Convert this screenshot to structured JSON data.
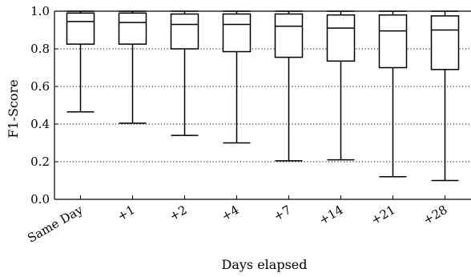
{
  "chart_data": {
    "type": "boxplot",
    "xlabel": "Days elapsed",
    "ylabel": "F1-Score",
    "ylim": [
      0.0,
      1.0
    ],
    "yticks": [
      "0.0",
      "0.2",
      "0.4",
      "0.6",
      "0.8",
      "1.0"
    ],
    "grid": "horizontal dotted",
    "categories": [
      "Same Day",
      "+1",
      "+2",
      "+4",
      "+7",
      "+14",
      "+21",
      "+28"
    ],
    "boxes": [
      {
        "whisker_low": 0.465,
        "q1": 0.825,
        "median": 0.945,
        "q3": 0.99,
        "whisker_high": 1.0
      },
      {
        "whisker_low": 0.405,
        "q1": 0.825,
        "median": 0.94,
        "q3": 0.99,
        "whisker_high": 1.0
      },
      {
        "whisker_low": 0.34,
        "q1": 0.8,
        "median": 0.93,
        "q3": 0.985,
        "whisker_high": 1.0
      },
      {
        "whisker_low": 0.3,
        "q1": 0.785,
        "median": 0.93,
        "q3": 0.985,
        "whisker_high": 1.0
      },
      {
        "whisker_low": 0.205,
        "q1": 0.755,
        "median": 0.92,
        "q3": 0.985,
        "whisker_high": 1.0
      },
      {
        "whisker_low": 0.21,
        "q1": 0.735,
        "median": 0.91,
        "q3": 0.98,
        "whisker_high": 1.0
      },
      {
        "whisker_low": 0.12,
        "q1": 0.7,
        "median": 0.895,
        "q3": 0.98,
        "whisker_high": 1.0
      },
      {
        "whisker_low": 0.1,
        "q1": 0.69,
        "median": 0.9,
        "q3": 0.975,
        "whisker_high": 1.0
      }
    ]
  }
}
